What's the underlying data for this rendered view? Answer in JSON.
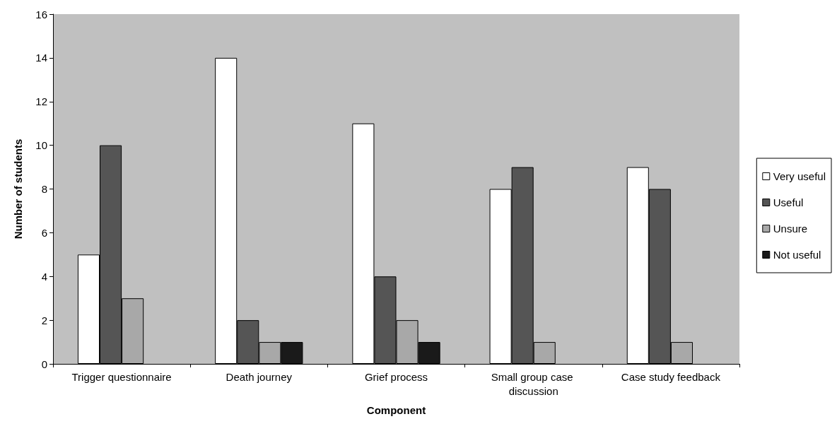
{
  "chart_data": {
    "type": "bar",
    "xlabel": "Component",
    "ylabel": "Number of students",
    "categories": [
      "Trigger questionnaire",
      "Death journey",
      "Grief process",
      "Small group case discussion",
      "Case study feedback"
    ],
    "series": [
      {
        "name": "Very useful",
        "color": "#ffffff",
        "values": [
          5,
          14,
          11,
          8,
          9
        ]
      },
      {
        "name": "Useful",
        "color": "#555555",
        "values": [
          10,
          2,
          4,
          9,
          8
        ]
      },
      {
        "name": "Unsure",
        "color": "#a8a8a8",
        "values": [
          3,
          1,
          2,
          1,
          1
        ]
      },
      {
        "name": "Not useful",
        "color": "#1a1a1a",
        "values": [
          0,
          1,
          1,
          0,
          0
        ]
      }
    ],
    "ylim": [
      0,
      16
    ],
    "yticks": [
      0,
      2,
      4,
      6,
      8,
      10,
      12,
      14,
      16
    ],
    "grid": false,
    "legend": "right"
  }
}
